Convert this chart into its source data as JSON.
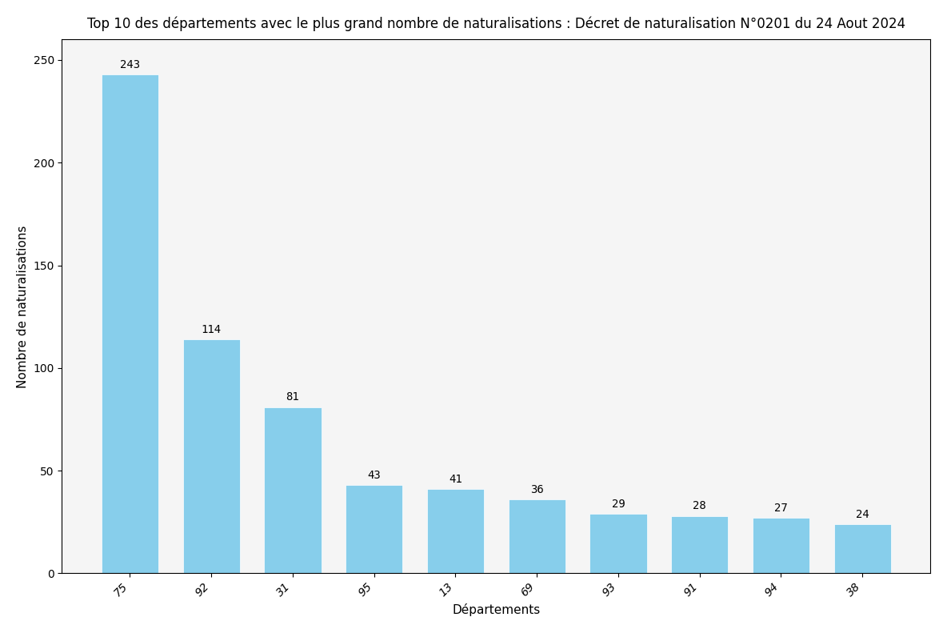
{
  "title": "Top 10 des départements avec le plus grand nombre de naturalisations : Décret de naturalisation N°0201 du 24 Aout 2024",
  "xlabel": "Départements",
  "ylabel": "Nombre de naturalisations",
  "categories": [
    "75",
    "92",
    "31",
    "95",
    "13",
    "69",
    "93",
    "91",
    "94",
    "38"
  ],
  "values": [
    243,
    114,
    81,
    43,
    41,
    36,
    29,
    28,
    27,
    24
  ],
  "bar_color": "#87CEEB",
  "ylim": [
    0,
    260
  ],
  "yticks": [
    0,
    50,
    100,
    150,
    200,
    250
  ],
  "title_fontsize": 12,
  "label_fontsize": 11,
  "tick_fontsize": 10,
  "bar_label_fontsize": 10,
  "background_color": "#ffffff",
  "axes_bg_color": "#f5f5f5"
}
